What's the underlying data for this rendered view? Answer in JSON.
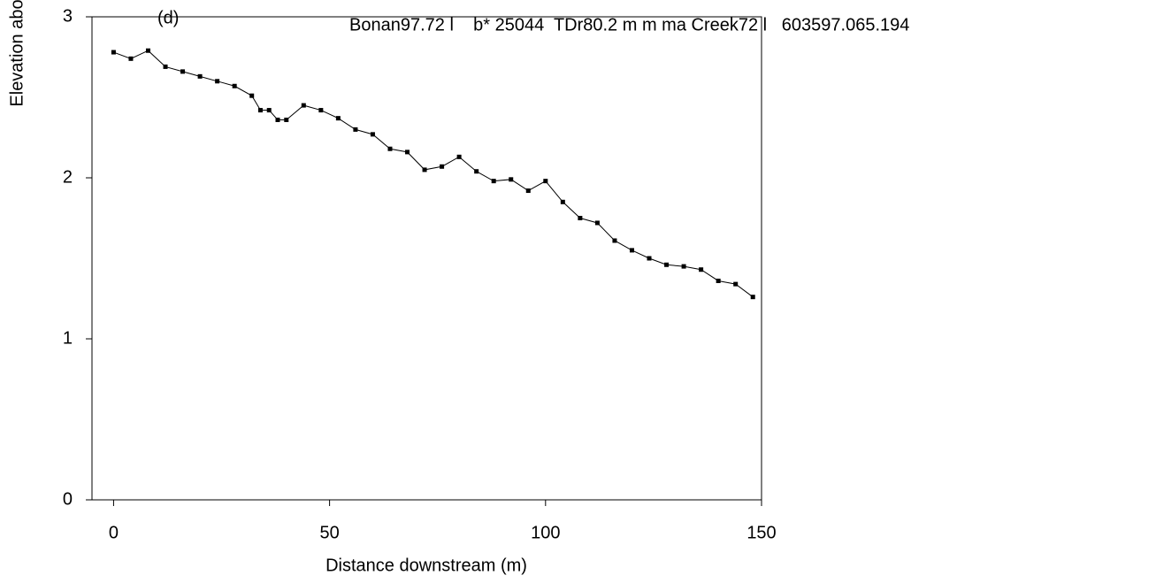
{
  "chart_data": {
    "type": "line",
    "annotation": "(d)",
    "header": "Bonan97.72 l    b* 25044  TDr80.2 m m ma Creek72 l   603597.065.194",
    "x_label": "Distance downstream (m)",
    "y_label": "Elevation abo",
    "xlim": [
      -5,
      150
    ],
    "xticks": [
      0,
      50,
      100,
      150
    ],
    "ylim": [
      0,
      3
    ],
    "yticks": [
      0,
      1,
      2,
      3
    ],
    "x": [
      0,
      4,
      8,
      12,
      16,
      20,
      24,
      28,
      32,
      34,
      36,
      38,
      40,
      44,
      48,
      52,
      56,
      60,
      64,
      68,
      72,
      76,
      80,
      84,
      88,
      92,
      96,
      100,
      104,
      108,
      112,
      116,
      120,
      124,
      128,
      132,
      136,
      140,
      144,
      148
    ],
    "series": [
      {
        "color": "#000000",
        "values": [
          2.78,
          2.74,
          2.79,
          2.69,
          2.66,
          2.63,
          2.6,
          2.57,
          2.51,
          2.42,
          2.42,
          2.36,
          2.36,
          2.45,
          2.42,
          2.37,
          2.3,
          2.27,
          2.18,
          2.16,
          2.05,
          2.07,
          2.13,
          2.04,
          1.98,
          1.99,
          1.92,
          1.98,
          1.85,
          1.75,
          1.72,
          1.61,
          1.55,
          1.5,
          1.46,
          1.45,
          1.43,
          1.36,
          1.34,
          1.26
        ]
      }
    ]
  }
}
